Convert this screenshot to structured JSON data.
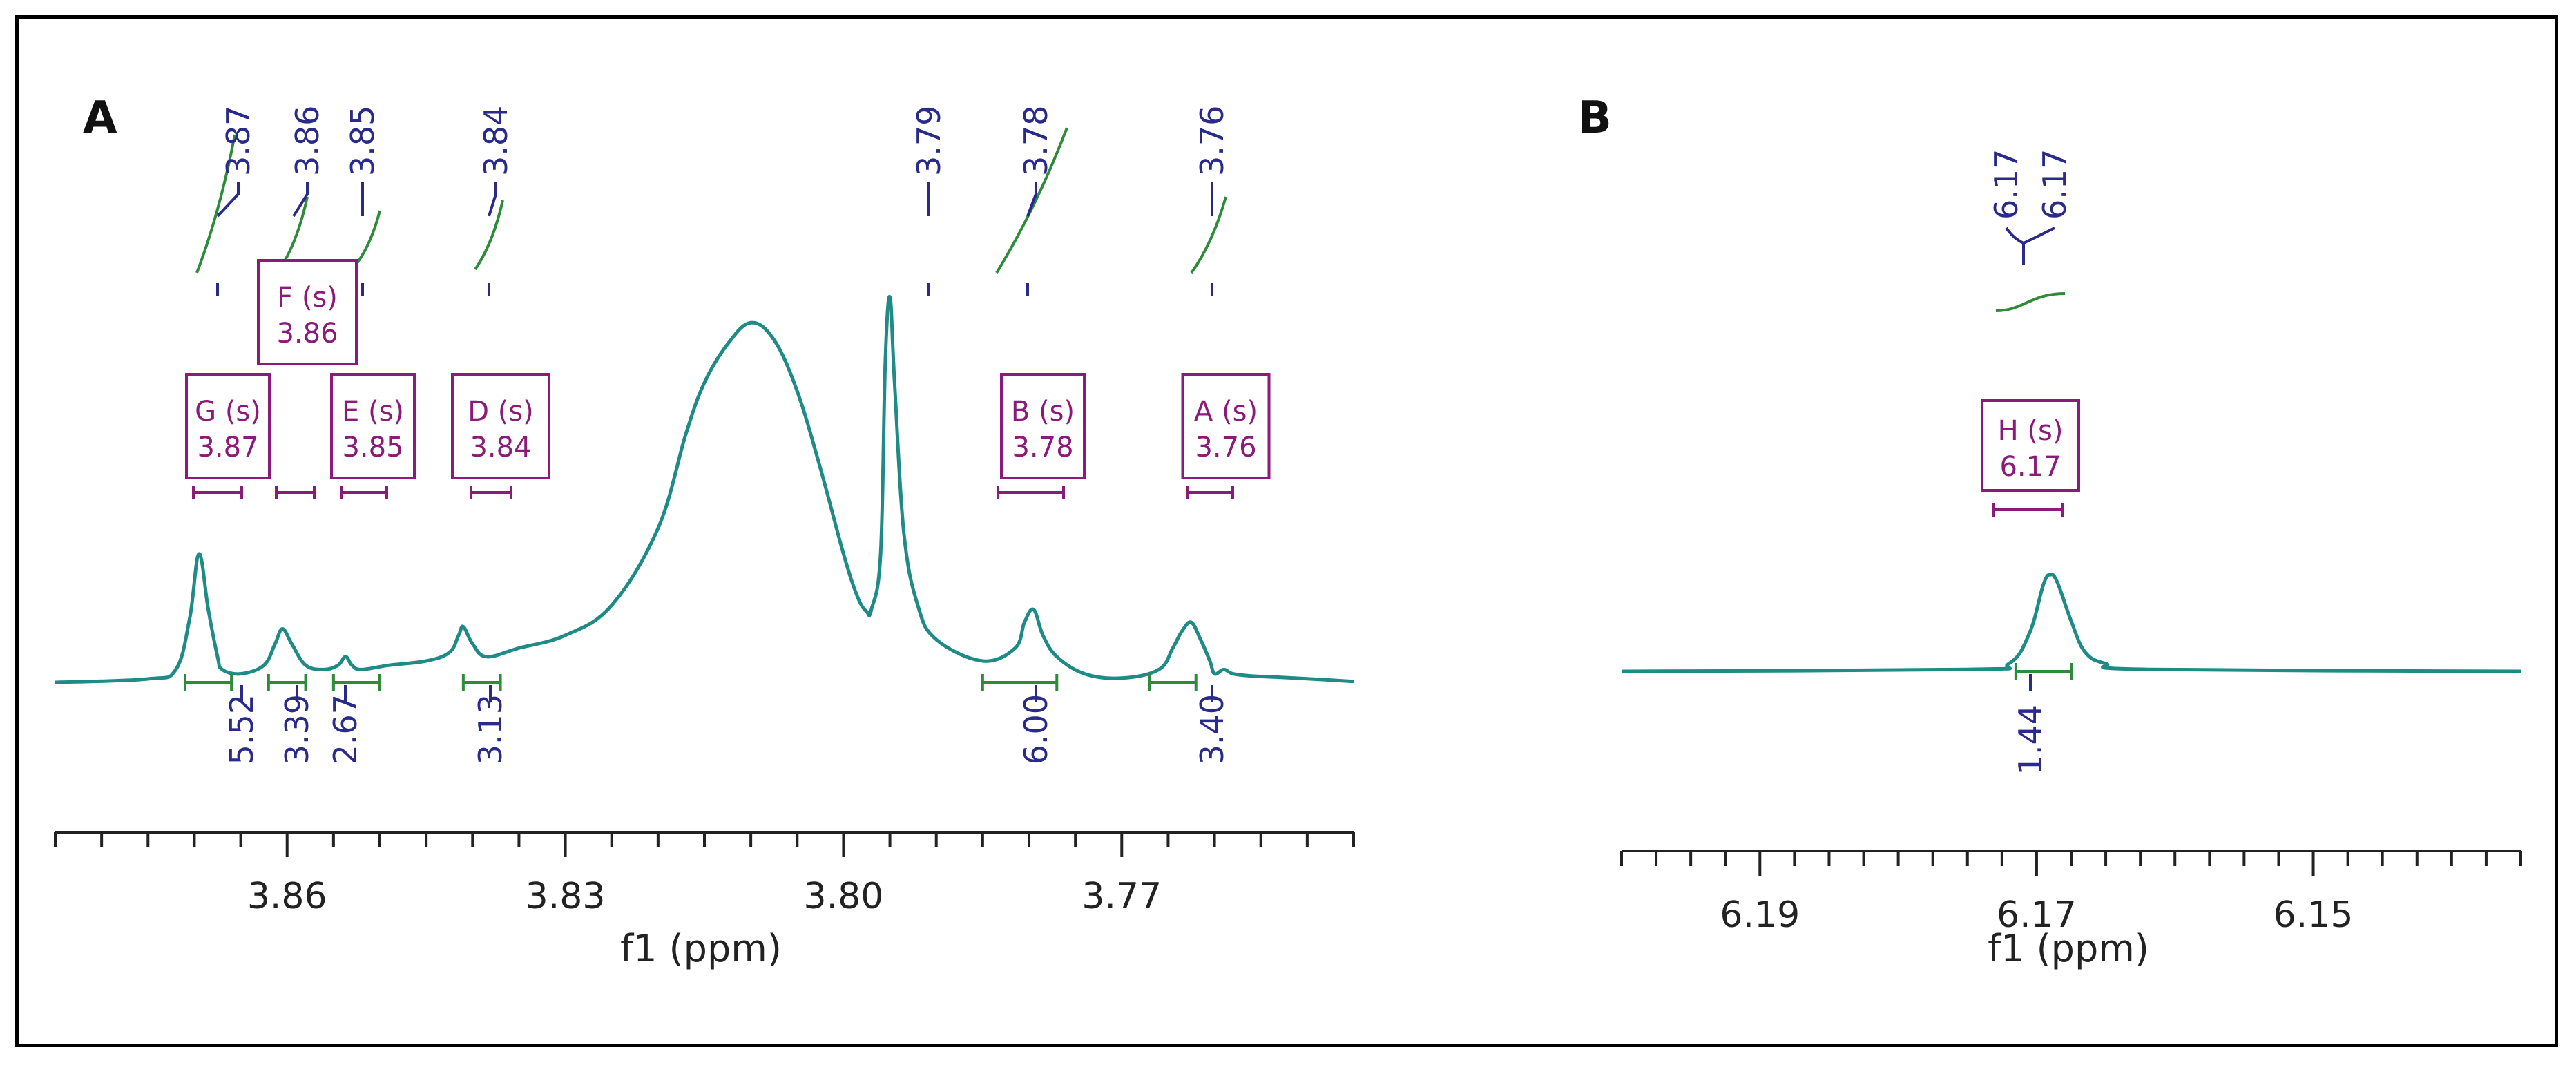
{
  "colors": {
    "spectrum": "#1f8b86",
    "peak_marker": "#2a2a8a",
    "integral_curve": "#2e8b3a",
    "integral_bracket": "#2e8b3a",
    "multiplet_box": "#8b1a7a",
    "axis": "#222222"
  },
  "chart_data": [
    {
      "type": "line",
      "panel_label": "A",
      "xlabel": "f1 (ppm)",
      "xlim": [
        3.885,
        3.745
      ],
      "x_reversed": true,
      "ticks": [
        3.86,
        3.83,
        3.8,
        3.77
      ],
      "tick_labels": [
        "3.86",
        "3.83",
        "3.80",
        "3.77"
      ],
      "peak_labels": [
        "3.87",
        "3.86",
        "3.85",
        "3.84",
        "3.79",
        "3.78",
        "3.76"
      ],
      "multiplets": [
        {
          "name": "G (s)",
          "shift": "3.87"
        },
        {
          "name": "F (s)",
          "shift": "3.86"
        },
        {
          "name": "E (s)",
          "shift": "3.85"
        },
        {
          "name": "D (s)",
          "shift": "3.84"
        },
        {
          "name": "B (s)",
          "shift": "3.78"
        },
        {
          "name": "A (s)",
          "shift": "3.76"
        }
      ],
      "integrals": [
        {
          "label": "5.52",
          "from": 3.871,
          "to": 3.866
        },
        {
          "label": "3.39",
          "from": 3.862,
          "to": 3.858
        },
        {
          "label": "2.67",
          "from": 3.855,
          "to": 3.85
        },
        {
          "label": "3.13",
          "from": 3.841,
          "to": 3.837
        },
        {
          "label": "6.00",
          "from": 3.785,
          "to": 3.777
        },
        {
          "label": "3.40",
          "from": 3.767,
          "to": 3.762
        }
      ],
      "series": [
        {
          "x": [
            3.885,
            3.875,
            3.872,
            3.8705,
            3.8695,
            3.8685,
            3.8675,
            3.867,
            3.865,
            3.8625,
            3.8613,
            3.8605,
            3.8595,
            3.858,
            3.856,
            3.8545,
            3.8537,
            3.853,
            3.852,
            3.849,
            3.845,
            3.8425,
            3.8415,
            3.841,
            3.84,
            3.8385,
            3.835,
            3.83,
            3.825,
            3.82,
            3.817,
            3.815,
            3.8125,
            3.81,
            3.8075,
            3.805,
            3.8025,
            3.8,
            3.7985,
            3.7975,
            3.797,
            3.796,
            3.7955,
            3.795,
            3.7945,
            3.7935,
            3.792,
            3.79,
            3.785,
            3.7815,
            3.7805,
            3.7795,
            3.7785,
            3.777,
            3.774,
            3.77,
            3.766,
            3.7645,
            3.7635,
            3.7625,
            3.7615,
            3.7605,
            3.76,
            3.759,
            3.758,
            3.756,
            3.753,
            3.748,
            3.745
          ],
          "y": [
            0.0,
            0.008,
            0.03,
            0.15,
            0.3,
            0.17,
            0.06,
            0.03,
            0.02,
            0.04,
            0.09,
            0.125,
            0.09,
            0.04,
            0.03,
            0.04,
            0.06,
            0.04,
            0.03,
            0.04,
            0.05,
            0.07,
            0.11,
            0.13,
            0.09,
            0.06,
            0.08,
            0.11,
            0.18,
            0.36,
            0.58,
            0.7,
            0.79,
            0.84,
            0.8,
            0.68,
            0.5,
            0.3,
            0.2,
            0.165,
            0.17,
            0.3,
            0.75,
            0.9,
            0.7,
            0.35,
            0.18,
            0.1,
            0.05,
            0.08,
            0.14,
            0.17,
            0.11,
            0.06,
            0.02,
            0.01,
            0.03,
            0.08,
            0.12,
            0.14,
            0.1,
            0.05,
            0.02,
            0.03,
            0.02,
            0.015,
            0.012,
            0.006,
            0.002
          ]
        }
      ]
    },
    {
      "type": "line",
      "panel_label": "B",
      "xlabel": "f1 (ppm)",
      "xlim": [
        6.2,
        6.135
      ],
      "x_reversed": true,
      "ticks": [
        6.19,
        6.17,
        6.15
      ],
      "tick_labels": [
        "6.19",
        "6.17",
        "6.15"
      ],
      "peak_labels": [
        "6.17",
        "6.17"
      ],
      "multiplets": [
        {
          "name": "H (s)",
          "shift": "6.17"
        }
      ],
      "integrals": [
        {
          "label": "1.44",
          "from": 6.1715,
          "to": 6.1675
        }
      ],
      "series": [
        {
          "x": [
            6.2,
            6.175,
            6.172,
            6.1705,
            6.1695,
            6.169,
            6.1685,
            6.1675,
            6.1665,
            6.165,
            6.162,
            6.135
          ],
          "y": [
            0.0,
            0.01,
            0.04,
            0.2,
            0.45,
            0.5,
            0.46,
            0.26,
            0.1,
            0.04,
            0.01,
            0.0
          ]
        }
      ]
    }
  ]
}
